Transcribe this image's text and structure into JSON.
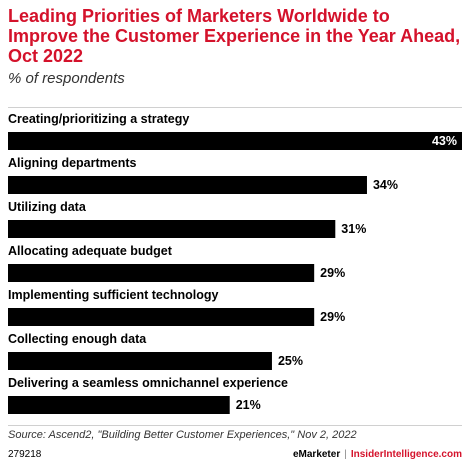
{
  "header": {
    "title": "Leading Priorities of Marketers Worldwide to Improve the Customer Experience in the Year Ahead, Oct 2022",
    "subtitle": "% of respondents"
  },
  "chart_data": {
    "type": "bar",
    "orientation": "horizontal",
    "categories": [
      "Creating/prioritizing a strategy",
      "Aligning departments",
      "Utilizing data",
      "Allocating adequate budget",
      "Implementing sufficient technology",
      "Collecting enough data",
      "Delivering a seamless omnichannel experience"
    ],
    "values": [
      43,
      34,
      31,
      29,
      29,
      25,
      21
    ],
    "value_labels": [
      "43%",
      "34%",
      "31%",
      "29%",
      "29%",
      "25%",
      "21%"
    ],
    "title": "Leading Priorities of Marketers Worldwide to Improve the Customer Experience in the Year Ahead, Oct 2022",
    "xlabel": "",
    "ylabel": "",
    "xlim": [
      0,
      43
    ],
    "grid": false,
    "legend": "none",
    "bar_color": "#000000"
  },
  "footer": {
    "source": "Source: Ascend2, \"Building Better Customer Experiences,\" Nov 2, 2022",
    "chart_id": "279218",
    "brand_left": "eMarketer",
    "separator": "|",
    "brand_right": "InsiderIntelligence.com"
  },
  "colors": {
    "title": "#d4122b",
    "bar": "#000000",
    "accent": "#d4122b"
  }
}
